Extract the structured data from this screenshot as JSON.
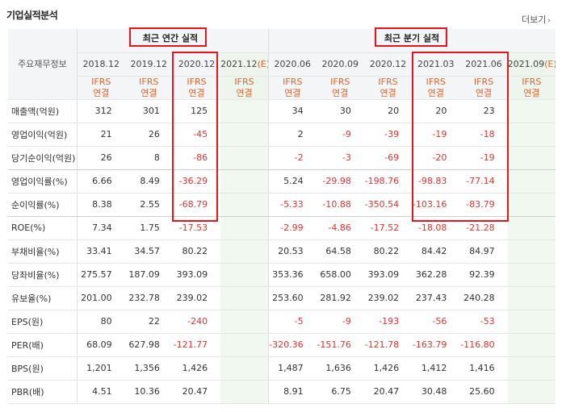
{
  "title": "기업실적분석",
  "more_label": "더보기",
  "label_header": "주요재무정보",
  "annual_label": "최근 연간 실적",
  "quarter_label": "최근 분기 실적",
  "columns": [
    {
      "year": "2018.12",
      "ifrs": "IFRS",
      "basis": "연결",
      "estimate": false
    },
    {
      "year": "2019.12",
      "ifrs": "IFRS",
      "basis": "연결",
      "estimate": false
    },
    {
      "year": "2020.12",
      "ifrs": "IFRS",
      "basis": "연결",
      "estimate": false
    },
    {
      "year": "2021.12",
      "est": "(E)",
      "ifrs": "IFRS",
      "basis": "연결",
      "estimate": true
    },
    {
      "year": "2020.06",
      "ifrs": "IFRS",
      "basis": "연결",
      "estimate": false
    },
    {
      "year": "2020.09",
      "ifrs": "IFRS",
      "basis": "연결",
      "estimate": false
    },
    {
      "year": "2020.12",
      "ifrs": "IFRS",
      "basis": "연결",
      "estimate": false
    },
    {
      "year": "2021.03",
      "ifrs": "IFRS",
      "basis": "연결",
      "estimate": false
    },
    {
      "year": "2021.06",
      "ifrs": "IFRS",
      "basis": "연결",
      "estimate": false
    },
    {
      "year": "2021.09",
      "est": "(E)",
      "ifrs": "IFRS",
      "basis": "연결",
      "estimate": true
    }
  ],
  "rows": [
    {
      "label": "매출액(억원)",
      "values": [
        "312",
        "301",
        "125",
        "",
        "34",
        "30",
        "20",
        "20",
        "23",
        ""
      ]
    },
    {
      "label": "영업이익(억원)",
      "values": [
        "21",
        "26",
        "-45",
        "",
        "2",
        "-9",
        "-39",
        "-19",
        "-18",
        ""
      ]
    },
    {
      "label": "당기순이익(억원)",
      "values": [
        "26",
        "8",
        "-86",
        "",
        "-2",
        "-3",
        "-69",
        "-20",
        "-19",
        ""
      ]
    },
    {
      "label": "영업이익률(%)",
      "values": [
        "6.66",
        "8.49",
        "-36.29",
        "",
        "5.24",
        "-29.98",
        "-198.76",
        "-98.83",
        "-77.14",
        ""
      ]
    },
    {
      "label": "순이익률(%)",
      "values": [
        "8.38",
        "2.55",
        "-68.79",
        "",
        "-5.33",
        "-10.88",
        "-350.54",
        "-103.16",
        "-83.79",
        ""
      ]
    },
    {
      "label": "ROE(%)",
      "values": [
        "7.34",
        "1.75",
        "-17.53",
        "",
        "-2.99",
        "-4.86",
        "-17.52",
        "-18.08",
        "-21.28",
        ""
      ]
    },
    {
      "label": "부채비율(%)",
      "values": [
        "33.41",
        "34.57",
        "80.22",
        "",
        "20.53",
        "64.58",
        "80.22",
        "84.42",
        "84.97",
        ""
      ]
    },
    {
      "label": "당좌비율(%)",
      "values": [
        "275.57",
        "187.09",
        "393.09",
        "",
        "353.36",
        "658.00",
        "393.09",
        "362.28",
        "92.39",
        ""
      ]
    },
    {
      "label": "유보율(%)",
      "values": [
        "201.00",
        "232.78",
        "239.02",
        "",
        "253.60",
        "281.92",
        "239.02",
        "237.43",
        "240.28",
        ""
      ]
    },
    {
      "label": "EPS(원)",
      "values": [
        "80",
        "22",
        "-240",
        "",
        "-5",
        "-9",
        "-193",
        "-56",
        "-53",
        ""
      ]
    },
    {
      "label": "PER(배)",
      "values": [
        "68.09",
        "627.98",
        "-121.77",
        "",
        "-320.36",
        "-151.76",
        "-121.78",
        "-163.79",
        "-116.80",
        ""
      ]
    },
    {
      "label": "BPS(원)",
      "values": [
        "1,201",
        "1,356",
        "1,426",
        "",
        "1,487",
        "1,636",
        "1,426",
        "1,412",
        "1,416",
        ""
      ]
    },
    {
      "label": "PBR(배)",
      "values": [
        "4.51",
        "10.36",
        "20.47",
        "",
        "8.91",
        "6.75",
        "20.47",
        "30.48",
        "25.60",
        ""
      ]
    }
  ],
  "colors": {
    "negative": "#e53131",
    "ifrs": "#e2632a",
    "estimate_bg": "#f0f8f0",
    "highlight_box": "#e8161c"
  }
}
